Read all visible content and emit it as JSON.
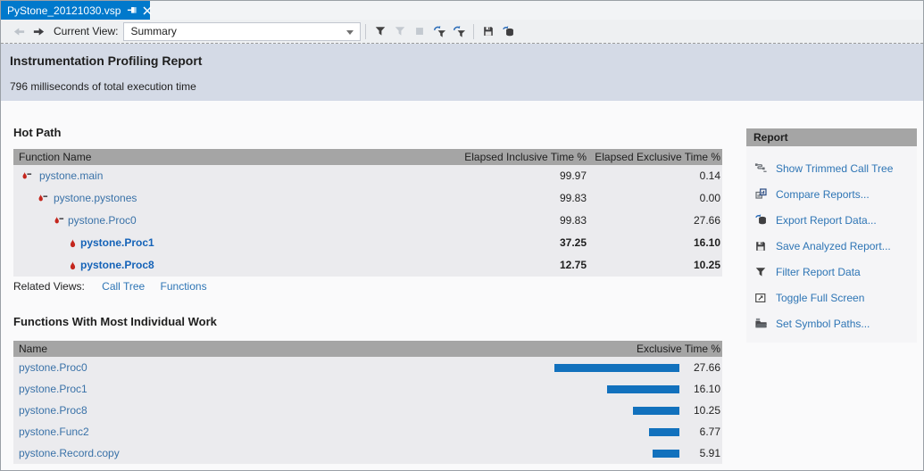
{
  "window": {
    "tab_title": "PyStone_20121030.vsp"
  },
  "toolbar": {
    "current_view_label": "Current View:",
    "view_selector_value": "Summary"
  },
  "report_header": {
    "title": "Instrumentation Profiling Report",
    "subtitle": "796 milliseconds of total execution time"
  },
  "hot_path": {
    "title": "Hot Path",
    "columns": [
      "Function Name",
      "Elapsed Inclusive Time %",
      "Elapsed Exclusive Time %"
    ],
    "rows": [
      {
        "name": "pystone.main",
        "inclusive": "99.97",
        "exclusive": "0.14",
        "indent": 0,
        "bold": false,
        "icon": "flame-dash-icon"
      },
      {
        "name": "pystone.pystones",
        "inclusive": "99.83",
        "exclusive": "0.00",
        "indent": 1,
        "bold": false,
        "icon": "flame-dash-icon"
      },
      {
        "name": "pystone.Proc0",
        "inclusive": "99.83",
        "exclusive": "27.66",
        "indent": 2,
        "bold": false,
        "icon": "flame-dash-icon"
      },
      {
        "name": "pystone.Proc1",
        "inclusive": "37.25",
        "exclusive": "16.10",
        "indent": 3,
        "bold": true,
        "icon": "flame-icon"
      },
      {
        "name": "pystone.Proc8",
        "inclusive": "12.75",
        "exclusive": "10.25",
        "indent": 3,
        "bold": true,
        "icon": "flame-icon"
      }
    ],
    "related_views": {
      "label": "Related Views:",
      "links": [
        "Call Tree",
        "Functions"
      ]
    }
  },
  "functions_work": {
    "title": "Functions With Most Individual Work",
    "columns": [
      "Name",
      "Exclusive Time %"
    ],
    "chart_type": "bar",
    "rows": [
      {
        "name": "pystone.Proc0",
        "value": "27.66"
      },
      {
        "name": "pystone.Proc1",
        "value": "16.10"
      },
      {
        "name": "pystone.Proc8",
        "value": "10.25"
      },
      {
        "name": "pystone.Func2",
        "value": "6.77"
      },
      {
        "name": "pystone.Record.copy",
        "value": "5.91"
      }
    ]
  },
  "report_panel": {
    "title": "Report",
    "items": [
      {
        "label": "Show Trimmed Call Tree"
      },
      {
        "label": "Compare Reports..."
      },
      {
        "label": "Export Report Data..."
      },
      {
        "label": "Save Analyzed Report..."
      },
      {
        "label": "Filter Report Data"
      },
      {
        "label": "Toggle Full Screen"
      },
      {
        "label": "Set Symbol Paths..."
      }
    ]
  },
  "colors": {
    "tab_accent": "#0079CC",
    "header_strip": "#D4DAE6",
    "grid_header": "#A5A5A5",
    "grid_body": "#EBEBEE",
    "bar_blue": "#1271BD",
    "link_blue": "#3A72A8",
    "hot_link_blue": "#1563B8",
    "panel_link_blue": "#2E75B5",
    "flame_red": "#C4261D"
  }
}
